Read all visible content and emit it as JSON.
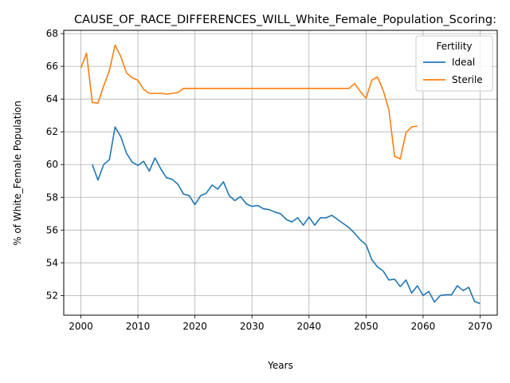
{
  "chart_data": {
    "type": "line",
    "title": "CAUSE_OF_RACE_DIFFERENCES_WILL_White_Female_Population_Scoring:",
    "xlabel": "Years",
    "ylabel": "% of White_Female Population",
    "xlim": [
      1997,
      2073
    ],
    "ylim": [
      50.8,
      68.2
    ],
    "xticks": [
      2000,
      2010,
      2020,
      2030,
      2040,
      2050,
      2060,
      2070
    ],
    "yticks": [
      52,
      54,
      56,
      58,
      60,
      62,
      64,
      66,
      68
    ],
    "grid": true,
    "legend": {
      "title": "Fertility",
      "placement": "top-right"
    },
    "series": [
      {
        "name": "Ideal",
        "color": "#1f77b4",
        "x": [
          2002,
          2003,
          2004,
          2005,
          2006,
          2007,
          2008,
          2009,
          2010,
          2011,
          2012,
          2013,
          2014,
          2015,
          2016,
          2017,
          2018,
          2019,
          2020,
          2021,
          2022,
          2023,
          2024,
          2025,
          2026,
          2027,
          2028,
          2029,
          2030,
          2031,
          2032,
          2033,
          2034,
          2035,
          2036,
          2037,
          2038,
          2039,
          2040,
          2041,
          2042,
          2043,
          2044,
          2045,
          2046,
          2047,
          2048,
          2049,
          2050,
          2051,
          2052,
          2053,
          2054,
          2055,
          2056,
          2057,
          2058,
          2059,
          2060,
          2061,
          2062,
          2063,
          2064,
          2065,
          2066,
          2067,
          2068,
          2069,
          2070
        ],
        "values": [
          60.0,
          59.05,
          60.0,
          60.3,
          62.3,
          61.7,
          60.7,
          60.15,
          59.95,
          60.2,
          59.6,
          60.4,
          59.75,
          59.2,
          59.1,
          58.8,
          58.2,
          58.1,
          57.55,
          58.1,
          58.25,
          58.75,
          58.5,
          58.95,
          58.1,
          57.8,
          58.05,
          57.6,
          57.45,
          57.5,
          57.3,
          57.25,
          57.1,
          57.0,
          56.65,
          56.5,
          56.75,
          56.3,
          56.8,
          56.3,
          56.75,
          56.75,
          56.9,
          56.65,
          56.4,
          56.15,
          55.8,
          55.4,
          55.1,
          54.2,
          53.75,
          53.5,
          52.95,
          53.0,
          52.55,
          52.95,
          52.15,
          52.6,
          52.0,
          52.25,
          51.6,
          52.0,
          52.05,
          52.05,
          52.6,
          52.3,
          52.5,
          51.65,
          51.5
        ]
      },
      {
        "name": "Sterile",
        "color": "#ff7f0e",
        "x": [
          2000,
          2001,
          2002,
          2003,
          2004,
          2005,
          2006,
          2007,
          2008,
          2009,
          2010,
          2011,
          2012,
          2013,
          2014,
          2015,
          2016,
          2017,
          2018,
          2019,
          2020,
          2021,
          2022,
          2023,
          2024,
          2025,
          2026,
          2027,
          2028,
          2029,
          2030,
          2031,
          2032,
          2033,
          2034,
          2035,
          2036,
          2037,
          2038,
          2039,
          2040,
          2041,
          2042,
          2043,
          2044,
          2045,
          2046,
          2047,
          2048,
          2049,
          2050,
          2051,
          2052,
          2053,
          2054,
          2055,
          2056,
          2057,
          2058,
          2059
        ],
        "values": [
          65.9,
          66.8,
          63.8,
          63.75,
          64.8,
          65.75,
          67.3,
          66.6,
          65.6,
          65.3,
          65.15,
          64.6,
          64.35,
          64.35,
          64.35,
          64.3,
          64.35,
          64.4,
          64.65,
          64.65,
          64.65,
          64.65,
          64.65,
          64.65,
          64.65,
          64.65,
          64.65,
          64.65,
          64.65,
          64.65,
          64.65,
          64.65,
          64.65,
          64.65,
          64.65,
          64.65,
          64.65,
          64.65,
          64.65,
          64.65,
          64.65,
          64.65,
          64.65,
          64.65,
          64.65,
          64.65,
          64.65,
          64.65,
          64.95,
          64.45,
          64.05,
          65.15,
          65.35,
          64.55,
          63.35,
          60.5,
          60.35,
          61.95,
          62.3,
          62.35
        ]
      }
    ]
  }
}
